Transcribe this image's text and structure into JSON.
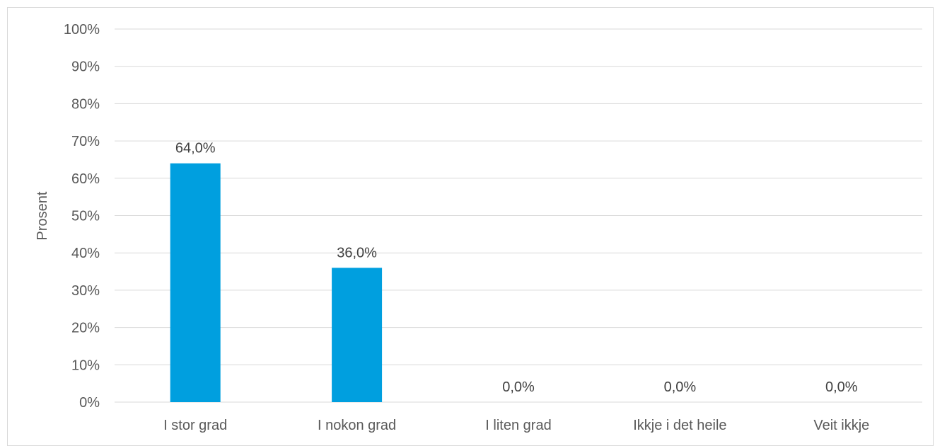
{
  "chart_data": {
    "type": "bar",
    "categories": [
      "I stor grad",
      "I nokon grad",
      "I liten grad",
      "Ikkje i det heile",
      "Veit ikkje"
    ],
    "values": [
      64.0,
      36.0,
      0.0,
      0.0,
      0.0
    ],
    "data_labels": [
      "64,0%",
      "36,0%",
      "0,0%",
      "0,0%",
      "0,0%"
    ],
    "title": "",
    "xlabel": "",
    "ylabel": "Prosent",
    "ylim": [
      0,
      100
    ],
    "yticks": [
      0,
      10,
      20,
      30,
      40,
      50,
      60,
      70,
      80,
      90,
      100
    ],
    "ytick_labels": [
      "0%",
      "10%",
      "20%",
      "30%",
      "40%",
      "50%",
      "60%",
      "70%",
      "80%",
      "90%",
      "100%"
    ],
    "grid": true,
    "legend": "none",
    "bar_color": "#009fdf",
    "grid_color": "#d9d9d9"
  }
}
